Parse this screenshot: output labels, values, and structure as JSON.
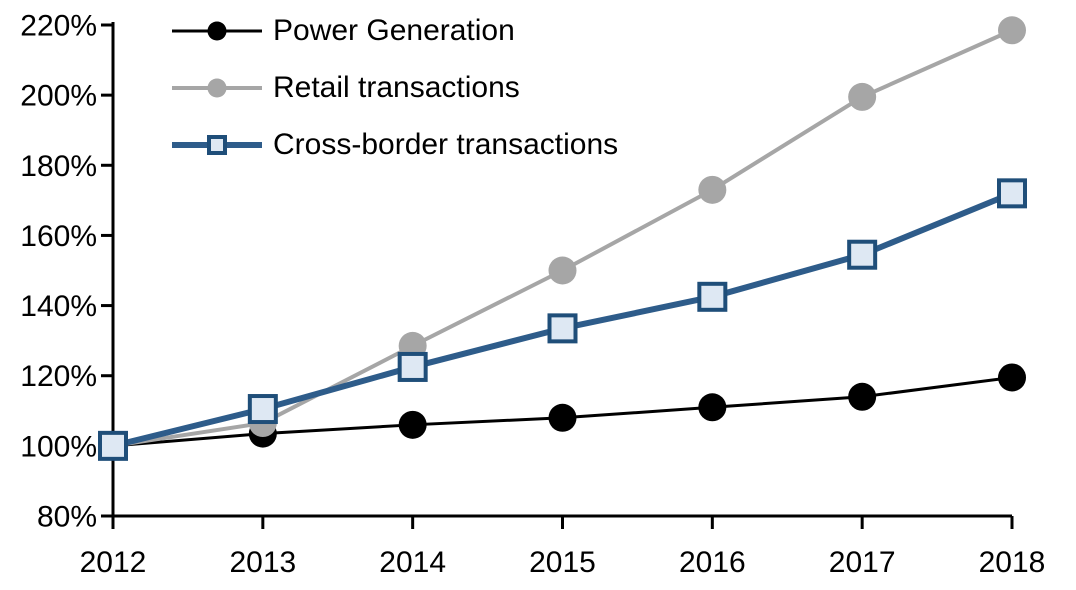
{
  "chart_data": {
    "type": "line",
    "title": "",
    "xlabel": "",
    "ylabel": "",
    "categories": [
      "2012",
      "2013",
      "2014",
      "2015",
      "2016",
      "2017",
      "2018"
    ],
    "series": [
      {
        "name": "Power Generation",
        "color": "#000000",
        "line_width": 3,
        "marker": "circle",
        "marker_color": "#000000",
        "values": [
          100,
          103.5,
          106,
          108,
          111,
          114,
          119.5
        ]
      },
      {
        "name": "Retail transactions",
        "color": "#A6A6A6",
        "line_width": 4,
        "marker": "circle",
        "marker_color": "#A6A6A6",
        "values": [
          100,
          106.5,
          128.5,
          150,
          173,
          199.5,
          218.5
        ]
      },
      {
        "name": "Cross-border transactions",
        "color": "#2E5C8A",
        "line_width": 6,
        "marker": "square",
        "marker_fill": "#DEE8F3",
        "marker_stroke": "#1F4E79",
        "values": [
          100,
          110.5,
          122.5,
          133.5,
          142.5,
          154.5,
          172
        ]
      }
    ],
    "ylim": [
      80,
      220
    ],
    "ytick_step": 20,
    "ytick_labels": [
      "80%",
      "100%",
      "120%",
      "140%",
      "160%",
      "180%",
      "200%",
      "220%"
    ],
    "grid": false,
    "legend_position": "top-left",
    "axis_color": "#000000"
  }
}
